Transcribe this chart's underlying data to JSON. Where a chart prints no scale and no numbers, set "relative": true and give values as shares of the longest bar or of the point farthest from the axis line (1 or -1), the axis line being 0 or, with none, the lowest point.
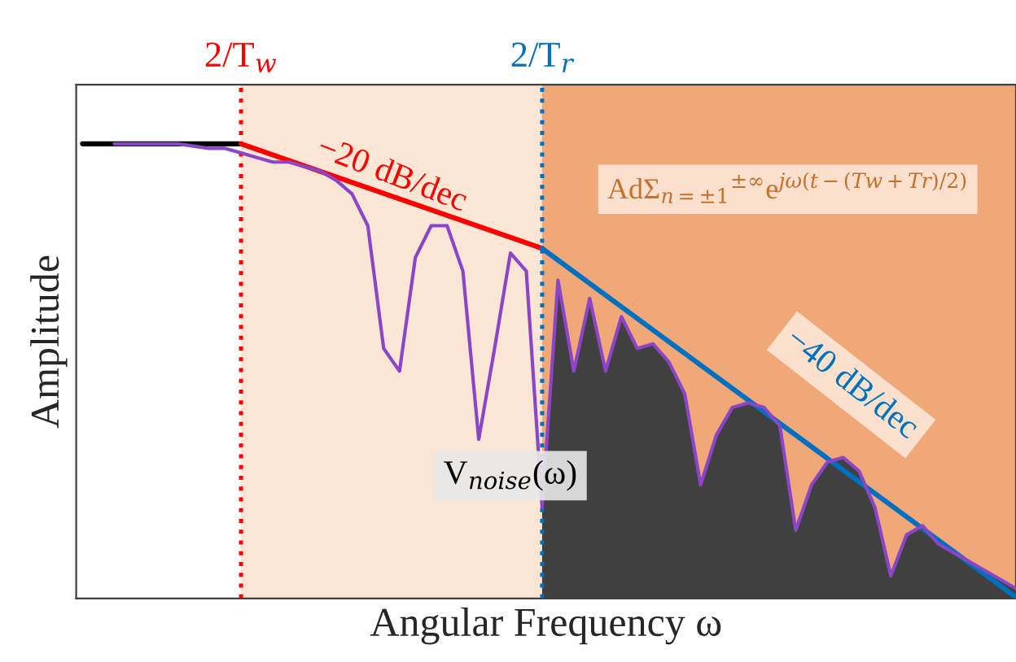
{
  "chart_data": {
    "type": "line",
    "relative": true,
    "xlabel": "Angular Frequency ω",
    "ylabel": "Amplitude",
    "categories": [
      null,
      null,
      null,
      null,
      null,
      null,
      null,
      null,
      null,
      null,
      null,
      null,
      null,
      null,
      null,
      null,
      null,
      null,
      null,
      null,
      null,
      null,
      null,
      null,
      null,
      null,
      null,
      null,
      null,
      null,
      null,
      null,
      null,
      null,
      null,
      null,
      null,
      null,
      null,
      null,
      null,
      null,
      null,
      null,
      null,
      null,
      null,
      null,
      null,
      null,
      null,
      null,
      null,
      null,
      null,
      null,
      null,
      null,
      null,
      null
    ],
    "series": [
      {
        "type": "area",
        "color": "#404040",
        "values": [
          null,
          null,
          null,
          null,
          null,
          null,
          null,
          null,
          null,
          null,
          null,
          null,
          null,
          null,
          null,
          null,
          null,
          null,
          null,
          null,
          null,
          null,
          null,
          null,
          null,
          null,
          null,
          null,
          null,
          0.2,
          0.7,
          0.5,
          0.66,
          0.5,
          0.62,
          0.55,
          0.56,
          0.52,
          0.45,
          0.25,
          0.36,
          0.42,
          0.43,
          0.42,
          0.38,
          0.15,
          0.25,
          0.3,
          0.31,
          0.28,
          0.2,
          0.05,
          0.14,
          0.16,
          0.12,
          0.1,
          0.08,
          0.06,
          0.04,
          0.02
        ]
      },
      {
        "color": "#8b45c8",
        "values": [
          null,
          null,
          1.0,
          1.0,
          1.0,
          1.0,
          1.0,
          0.995,
          0.99,
          0.99,
          0.98,
          0.97,
          0.96,
          0.96,
          0.95,
          0.94,
          0.92,
          0.89,
          0.82,
          0.55,
          0.5,
          0.75,
          0.82,
          0.82,
          0.72,
          0.35,
          0.55,
          0.76,
          0.72,
          0.2,
          0.7,
          0.5,
          0.66,
          0.5,
          0.62,
          0.55,
          0.56,
          0.52,
          0.45,
          0.25,
          0.36,
          0.42,
          0.43,
          0.42,
          0.38,
          0.15,
          0.25,
          0.3,
          0.31,
          0.28,
          0.2,
          0.05,
          0.14,
          0.16,
          0.12,
          0.1,
          0.08,
          0.06,
          0.04,
          0.02
        ]
      },
      {
        "color": "#000000",
        "values": [
          1.0,
          1.0,
          1.0,
          1.0,
          1.0,
          1.0,
          1.0,
          1.0,
          1.0,
          1.0,
          1.0,
          null,
          null,
          null,
          null,
          null,
          null,
          null,
          null,
          null,
          null,
          null,
          null,
          null,
          null,
          null,
          null,
          null,
          null,
          null,
          null,
          null,
          null,
          null,
          null,
          null,
          null,
          null,
          null,
          null,
          null,
          null,
          null,
          null,
          null,
          null,
          null,
          null,
          null,
          null,
          null,
          null,
          null,
          null,
          null,
          null,
          null,
          null,
          null,
          null
        ]
      },
      {
        "color": "#ff0000",
        "values": [
          null,
          null,
          null,
          null,
          null,
          null,
          null,
          null,
          null,
          null,
          1.0,
          null,
          null,
          null,
          null,
          null,
          null,
          null,
          null,
          null,
          null,
          null,
          null,
          null,
          null,
          null,
          null,
          null,
          null,
          0.77,
          null,
          null,
          null,
          null,
          null,
          null,
          null,
          null,
          null,
          null,
          null,
          null,
          null,
          null,
          null,
          null,
          null,
          null,
          null,
          null,
          null,
          null,
          null,
          null,
          null,
          null,
          null,
          null,
          null,
          null
        ]
      },
      {
        "color": "#0070c0",
        "values": [
          null,
          null,
          null,
          null,
          null,
          null,
          null,
          null,
          null,
          null,
          null,
          null,
          null,
          null,
          null,
          null,
          null,
          null,
          null,
          null,
          null,
          null,
          null,
          null,
          null,
          null,
          null,
          null,
          null,
          0.77,
          null,
          null,
          null,
          null,
          null,
          null,
          null,
          null,
          null,
          null,
          null,
          null,
          null,
          null,
          null,
          null,
          null,
          null,
          null,
          null,
          null,
          null,
          null,
          null,
          null,
          null,
          null,
          null,
          null,
          0.0
        ]
      }
    ],
    "annotations": [
      "−20 dB/dec",
      "−40 dB/dec",
      "V$_{noise}$(ω)",
      "AdΣ$_{n=±1}$$^{±∞}$e$^{jω(t−(Tw+Tr)/2)}$",
      "2/T$_{w}$",
      "2/T$_{r}$"
    ]
  }
}
